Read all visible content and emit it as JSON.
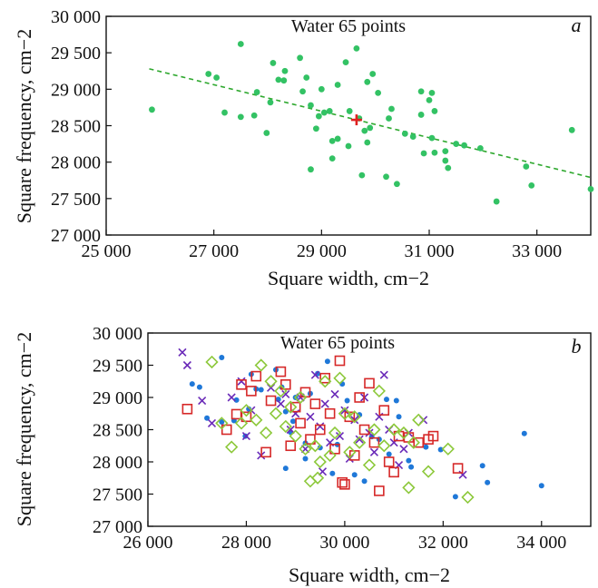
{
  "chart_data": [
    {
      "panel_label": "a",
      "type": "scatter",
      "title": "Water 65 points",
      "xlabel": "Square width, cm−2",
      "ylabel": "Square frequency, cm−2",
      "xlim": [
        25000,
        34000
      ],
      "ylim": [
        27000,
        30000
      ],
      "xticks": [
        25000,
        27000,
        29000,
        31000,
        33000
      ],
      "yticks": [
        27000,
        27500,
        28000,
        28500,
        29000,
        29500,
        30000
      ],
      "tick_labels_x": [
        "25 000",
        "27 000",
        "29 000",
        "31 000",
        "33 000"
      ],
      "tick_labels_y": [
        "27 000",
        "27 500",
        "28 000",
        "28 500",
        "29 000",
        "29 500",
        "30 000"
      ],
      "grid": false,
      "colors": {
        "points": "#33c264",
        "trend": "#2ea82e",
        "centroid": "#e02020"
      },
      "trend_line": {
        "x": [
          25800,
          34000
        ],
        "y": [
          29280,
          27790
        ]
      },
      "centroid": {
        "x": 29650,
        "y": 28580
      },
      "series": [
        {
          "marker": "dot",
          "points": [
            [
              25850,
              28720
            ],
            [
              26900,
              29210
            ],
            [
              27050,
              29160
            ],
            [
              27200,
              28680
            ],
            [
              27500,
              29620
            ],
            [
              27500,
              28620
            ],
            [
              27750,
              28640
            ],
            [
              27800,
              28960
            ],
            [
              27980,
              28400
            ],
            [
              28050,
              28820
            ],
            [
              28100,
              29360
            ],
            [
              28200,
              29130
            ],
            [
              28300,
              29120
            ],
            [
              28320,
              29250
            ],
            [
              28600,
              29430
            ],
            [
              28650,
              28970
            ],
            [
              28720,
              29160
            ],
            [
              28800,
              28780
            ],
            [
              28800,
              27900
            ],
            [
              28900,
              28460
            ],
            [
              28950,
              28630
            ],
            [
              29000,
              29000
            ],
            [
              29050,
              28680
            ],
            [
              29150,
              28700
            ],
            [
              29200,
              28290
            ],
            [
              29200,
              28050
            ],
            [
              29300,
              29060
            ],
            [
              29450,
              29370
            ],
            [
              29500,
              28220
            ],
            [
              29520,
              28700
            ],
            [
              29650,
              29560
            ],
            [
              29700,
              28600
            ],
            [
              29750,
              27820
            ],
            [
              29800,
              28430
            ],
            [
              29850,
              28270
            ],
            [
              29900,
              28470
            ],
            [
              29950,
              29210
            ],
            [
              30050,
              28950
            ],
            [
              30200,
              27800
            ],
            [
              30250,
              28600
            ],
            [
              30300,
              28730
            ],
            [
              30400,
              27700
            ],
            [
              30550,
              28390
            ],
            [
              30700,
              28350
            ],
            [
              30850,
              28970
            ],
            [
              30850,
              28650
            ],
            [
              30900,
              28120
            ],
            [
              31000,
              28850
            ],
            [
              31050,
              28950
            ],
            [
              31050,
              28330
            ],
            [
              31100,
              28700
            ],
            [
              31100,
              28130
            ],
            [
              31300,
              28150
            ],
            [
              31300,
              28020
            ],
            [
              31350,
              27920
            ],
            [
              31500,
              28250
            ],
            [
              31650,
              28230
            ],
            [
              31950,
              28190
            ],
            [
              32250,
              27460
            ],
            [
              32800,
              27940
            ],
            [
              32900,
              27680
            ],
            [
              33650,
              28440
            ],
            [
              34000,
              27630
            ],
            [
              29850,
              29100
            ],
            [
              29300,
              28320
            ]
          ]
        }
      ]
    },
    {
      "panel_label": "b",
      "type": "scatter",
      "title": "Water 65 points",
      "xlabel": "Square width, cm−2",
      "ylabel": "Square frequency, cm−2",
      "xlim": [
        26000,
        35000
      ],
      "ylim": [
        27000,
        30000
      ],
      "xticks": [
        26000,
        28000,
        30000,
        32000,
        34000
      ],
      "yticks": [
        27000,
        27500,
        28000,
        28500,
        29000,
        29500,
        30000
      ],
      "tick_labels_x": [
        "26 000",
        "28 000",
        "30 000",
        "32 000",
        "34 000"
      ],
      "tick_labels_y": [
        "27 000",
        "27 500",
        "28 000",
        "28 500",
        "29 000",
        "29 500",
        "30 000"
      ],
      "grid": false,
      "colors": {
        "dot": "#1f78d8",
        "cross": "#6a2ab8",
        "square": "#d62828",
        "diamond": "#8cc83a"
      },
      "series": [
        {
          "marker": "dot",
          "points": [
            [
              26900,
              29210
            ],
            [
              27050,
              29160
            ],
            [
              27200,
              28680
            ],
            [
              27500,
              29620
            ],
            [
              27500,
              28620
            ],
            [
              27750,
              28640
            ],
            [
              27800,
              28960
            ],
            [
              27980,
              28400
            ],
            [
              28050,
              28820
            ],
            [
              28100,
              29360
            ],
            [
              28200,
              29130
            ],
            [
              28300,
              29120
            ],
            [
              28600,
              29430
            ],
            [
              28650,
              28970
            ],
            [
              28720,
              29160
            ],
            [
              28800,
              28780
            ],
            [
              28800,
              27900
            ],
            [
              28900,
              28460
            ],
            [
              28950,
              28630
            ],
            [
              29000,
              29000
            ],
            [
              29200,
              28290
            ],
            [
              29200,
              28050
            ],
            [
              29300,
              29060
            ],
            [
              29450,
              29370
            ],
            [
              29500,
              28220
            ],
            [
              29650,
              29560
            ],
            [
              29750,
              27820
            ],
            [
              29850,
              28270
            ],
            [
              29950,
              29210
            ],
            [
              30050,
              28950
            ],
            [
              30200,
              27800
            ],
            [
              30300,
              28730
            ],
            [
              30400,
              27700
            ],
            [
              30550,
              28390
            ],
            [
              30700,
              28350
            ],
            [
              30850,
              28970
            ],
            [
              30900,
              28120
            ],
            [
              31050,
              28950
            ],
            [
              31100,
              28700
            ],
            [
              31300,
              28020
            ],
            [
              31350,
              27920
            ],
            [
              31650,
              28230
            ],
            [
              31950,
              28190
            ],
            [
              32250,
              27460
            ],
            [
              32800,
              27940
            ],
            [
              32900,
              27680
            ],
            [
              33650,
              28440
            ],
            [
              34000,
              27630
            ]
          ]
        },
        {
          "marker": "cross",
          "points": [
            [
              26700,
              29700
            ],
            [
              26800,
              29500
            ],
            [
              27100,
              28950
            ],
            [
              27300,
              28600
            ],
            [
              27700,
              29000
            ],
            [
              27900,
              29250
            ],
            [
              28000,
              28400
            ],
            [
              28100,
              28800
            ],
            [
              28300,
              28100
            ],
            [
              28500,
              29150
            ],
            [
              28700,
              28900
            ],
            [
              28800,
              29050
            ],
            [
              28900,
              28500
            ],
            [
              29000,
              28750
            ],
            [
              29100,
              29000
            ],
            [
              29200,
              28200
            ],
            [
              29300,
              28700
            ],
            [
              29400,
              29350
            ],
            [
              29500,
              28550
            ],
            [
              29600,
              28900
            ],
            [
              29700,
              28300
            ],
            [
              29800,
              29050
            ],
            [
              29900,
              28400
            ],
            [
              30000,
              28800
            ],
            [
              30100,
              28050
            ],
            [
              30200,
              28650
            ],
            [
              30300,
              28350
            ],
            [
              30400,
              29000
            ],
            [
              30500,
              28450
            ],
            [
              30600,
              28150
            ],
            [
              30700,
              28700
            ],
            [
              30800,
              29350
            ],
            [
              30900,
              28500
            ],
            [
              31000,
              28300
            ],
            [
              31100,
              27950
            ],
            [
              31200,
              28200
            ],
            [
              31300,
              28450
            ],
            [
              31600,
              28650
            ],
            [
              32400,
              27800
            ],
            [
              29550,
              27850
            ]
          ]
        },
        {
          "marker": "square",
          "points": [
            [
              26800,
              28820
            ],
            [
              27600,
              28500
            ],
            [
              27800,
              28740
            ],
            [
              27900,
              29200
            ],
            [
              28000,
              28700
            ],
            [
              28100,
              29100
            ],
            [
              28200,
              29330
            ],
            [
              28400,
              28150
            ],
            [
              28500,
              28950
            ],
            [
              28700,
              29400
            ],
            [
              28800,
              29200
            ],
            [
              28900,
              28250
            ],
            [
              29000,
              28850
            ],
            [
              29100,
              28600
            ],
            [
              29200,
              29080
            ],
            [
              29300,
              28350
            ],
            [
              29400,
              28900
            ],
            [
              29500,
              28500
            ],
            [
              29600,
              29300
            ],
            [
              29700,
              28750
            ],
            [
              29800,
              28200
            ],
            [
              29900,
              29570
            ],
            [
              29950,
              27680
            ],
            [
              30000,
              27650
            ],
            [
              30100,
              28700
            ],
            [
              30200,
              28100
            ],
            [
              30300,
              29000
            ],
            [
              30400,
              28500
            ],
            [
              30500,
              29220
            ],
            [
              30600,
              28300
            ],
            [
              30700,
              27550
            ],
            [
              30800,
              28800
            ],
            [
              30900,
              28000
            ],
            [
              31000,
              27840
            ],
            [
              31100,
              28400
            ],
            [
              31300,
              28380
            ],
            [
              31500,
              28300
            ],
            [
              31700,
              28350
            ],
            [
              31800,
              28400
            ],
            [
              32300,
              27900
            ]
          ]
        },
        {
          "marker": "diamond",
          "points": [
            [
              27300,
              29550
            ],
            [
              27500,
              28600
            ],
            [
              27700,
              28230
            ],
            [
              27900,
              28600
            ],
            [
              28000,
              28800
            ],
            [
              28200,
              28650
            ],
            [
              28300,
              29500
            ],
            [
              28400,
              28450
            ],
            [
              28500,
              29250
            ],
            [
              28600,
              28750
            ],
            [
              28700,
              29100
            ],
            [
              28800,
              28550
            ],
            [
              28900,
              28850
            ],
            [
              29000,
              28400
            ],
            [
              29100,
              29000
            ],
            [
              29200,
              28200
            ],
            [
              29300,
              27700
            ],
            [
              29400,
              28250
            ],
            [
              29500,
              28000
            ],
            [
              29600,
              29250
            ],
            [
              29700,
              28100
            ],
            [
              29800,
              28450
            ],
            [
              29900,
              29300
            ],
            [
              30000,
              28750
            ],
            [
              30100,
              28150
            ],
            [
              30200,
              28700
            ],
            [
              30300,
              28300
            ],
            [
              30500,
              27950
            ],
            [
              30600,
              28500
            ],
            [
              30700,
              29100
            ],
            [
              30800,
              28250
            ],
            [
              31000,
              28500
            ],
            [
              31200,
              28450
            ],
            [
              31300,
              27600
            ],
            [
              31400,
              28300
            ],
            [
              31500,
              28650
            ],
            [
              31700,
              27850
            ],
            [
              32100,
              28200
            ],
            [
              32500,
              27450
            ],
            [
              29450,
              27750
            ]
          ]
        }
      ]
    }
  ]
}
